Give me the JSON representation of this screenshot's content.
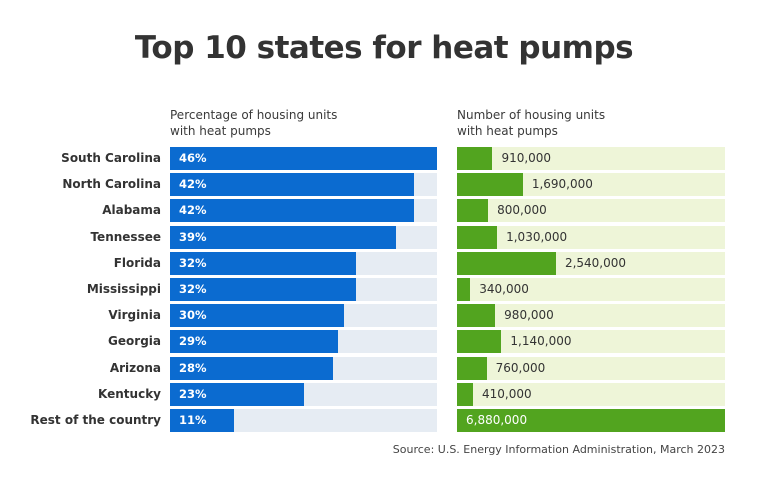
{
  "chart_data": {
    "type": "bar",
    "orientation": "horizontal",
    "title": "Top 10 states for heat pumps",
    "source": "Source: U.S. Energy Information Administration, March 2023",
    "categories": [
      "South Carolina",
      "North Carolina",
      "Alabama",
      "Tennessee",
      "Florida",
      "Mississippi",
      "Virginia",
      "Georgia",
      "Arizona",
      "Kentucky",
      "Rest of the country"
    ],
    "panels": [
      {
        "name": "Percentage of housing units with heat pumps",
        "subtitle_line1": "Percentage of housing units",
        "subtitle_line2": "with heat pumps",
        "unit": "%",
        "values": [
          46,
          42,
          42,
          39,
          32,
          32,
          30,
          29,
          28,
          23,
          11
        ],
        "labels": [
          "46%",
          "42%",
          "42%",
          "39%",
          "32%",
          "32%",
          "30%",
          "29%",
          "28%",
          "23%",
          "11%"
        ],
        "xlim": [
          0,
          46
        ],
        "color": "#0b6bd0",
        "track_color": "#e6ecf3"
      },
      {
        "name": "Number of housing units with heat pumps",
        "subtitle_line1": "Number of housing units",
        "subtitle_line2": "with heat pumps",
        "unit": "housing units",
        "values": [
          910000,
          1690000,
          800000,
          1030000,
          2540000,
          340000,
          980000,
          1140000,
          760000,
          410000,
          6880000
        ],
        "labels": [
          "910,000",
          "1,690,000",
          "800,000",
          "1,030,000",
          "2,540,000",
          "340,000",
          "980,000",
          "1,140,000",
          "760,000",
          "410,000",
          "6,880,000"
        ],
        "xlim": [
          0,
          6880000
        ],
        "color": "#52a41f",
        "track_color": "#eef5d8"
      }
    ],
    "grid": false,
    "legend": "none"
  }
}
